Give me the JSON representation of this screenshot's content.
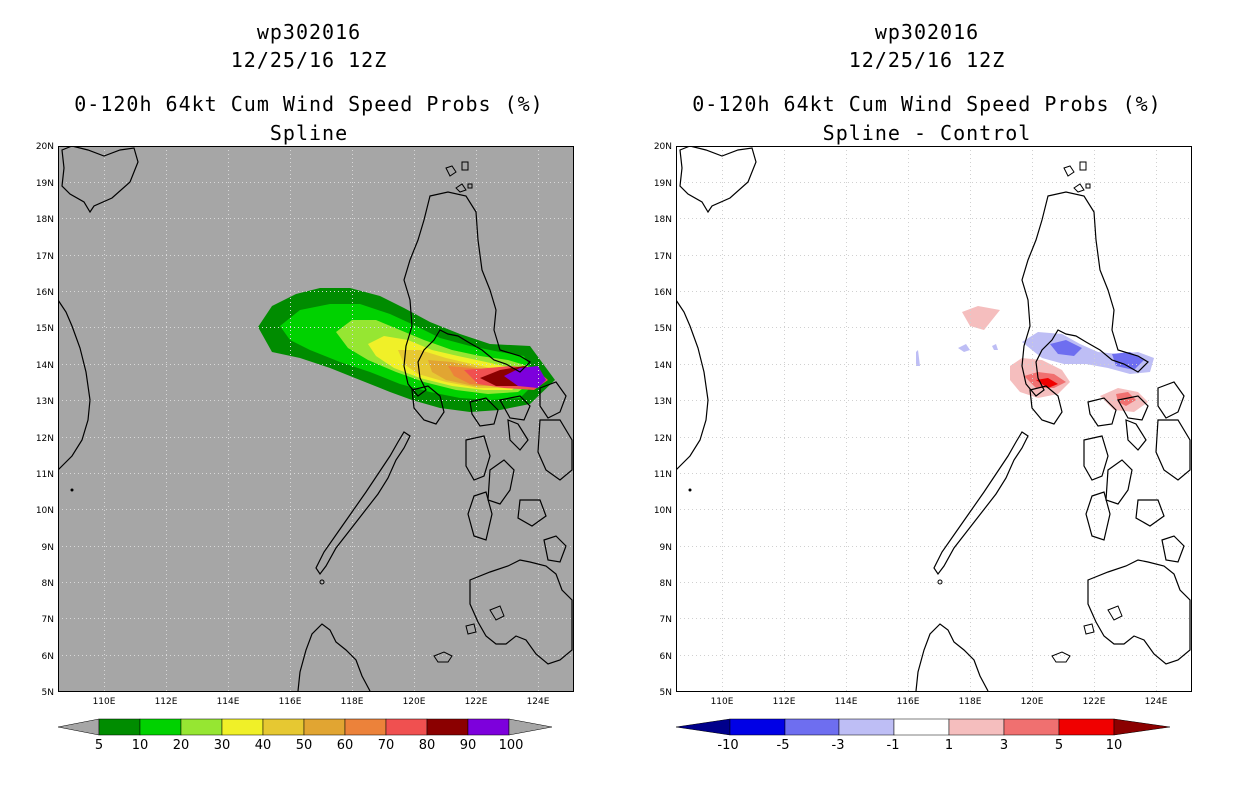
{
  "left_panel": {
    "title_line1": "wp302016",
    "title_line2": "12/25/16 12Z",
    "title_line3": "0-120h 64kt Cum Wind Speed Probs (%)",
    "title_line4": "Spline",
    "background_color": "#a6a6a6",
    "colorbar": {
      "labels": [
        "5",
        "10",
        "20",
        "30",
        "40",
        "50",
        "60",
        "70",
        "80",
        "90",
        "100"
      ],
      "colors": [
        "#008c00",
        "#00d200",
        "#96e632",
        "#f0f028",
        "#e6c832",
        "#e1a532",
        "#ec823a",
        "#f05050",
        "#8b0000",
        "#7d00dc"
      ],
      "end_color": "#a6a6a6"
    }
  },
  "right_panel": {
    "title_line1": "wp302016",
    "title_line2": "12/25/16 12Z",
    "title_line3": "0-120h 64kt Cum Wind Speed Probs (%)",
    "title_line4": "Spline - Control",
    "background_color": "#ffffff",
    "colorbar": {
      "labels": [
        "-10",
        "-5",
        "-3",
        "-1",
        "1",
        "3",
        "5",
        "10"
      ],
      "colors": [
        "#0000e6",
        "#6e6ef0",
        "#bebef5",
        "#ffffff",
        "#f5bebe",
        "#f07070",
        "#f00000"
      ],
      "low_end_color": "#00008b",
      "high_end_color": "#8b0000"
    }
  },
  "map": {
    "lon_labels": [
      "110E",
      "112E",
      "114E",
      "116E",
      "118E",
      "120E",
      "122E",
      "124E"
    ],
    "lat_labels": [
      "20N",
      "19N",
      "18N",
      "17N",
      "16N",
      "15N",
      "14N",
      "13N",
      "12N",
      "11N",
      "10N",
      "9N",
      "8N",
      "7N",
      "6N",
      "5N"
    ]
  }
}
